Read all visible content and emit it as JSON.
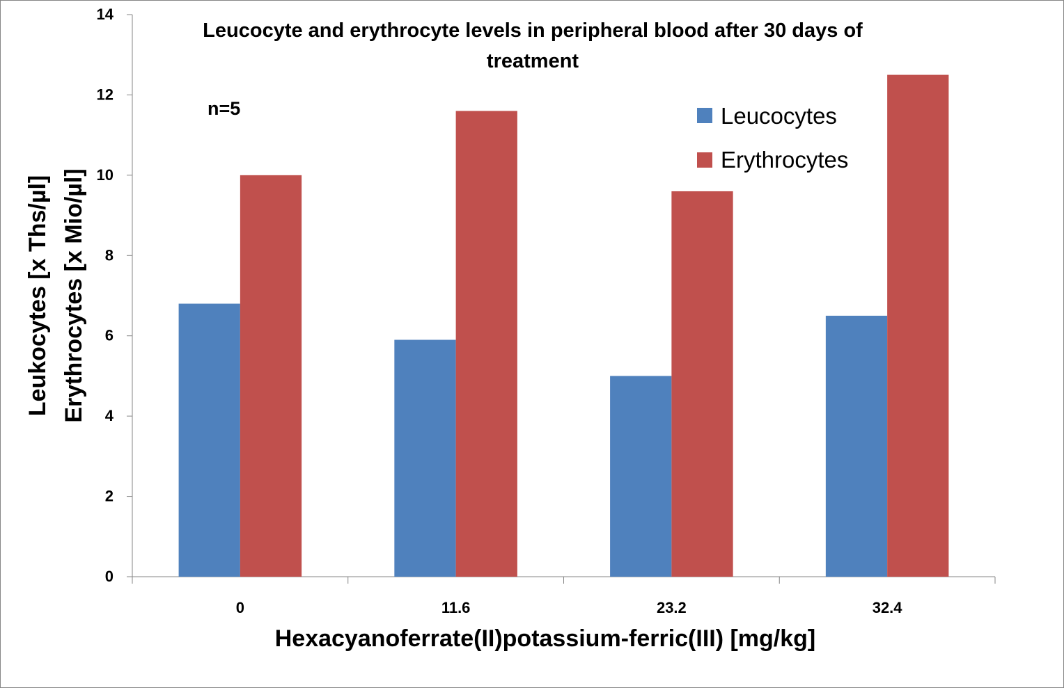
{
  "chart_data": {
    "type": "bar",
    "title_lines": [
      "Leucocyte and erythrocyte levels in peripheral blood after 30 days of",
      "treatment"
    ],
    "xlabel": "Hexacyanoferrate(II)potassium-ferric(III) [mg/kg]",
    "ylabel_lines": [
      "Leukocytes [x Ths/µl]",
      "Erythrocytes [x Mio/µl]"
    ],
    "annotation": "n=5",
    "categories": [
      "0",
      "11.6",
      "23.2",
      "32.4"
    ],
    "series": [
      {
        "name": "Leucocytes",
        "color": "#4F81BD",
        "values": [
          6.8,
          5.9,
          5.0,
          6.5
        ]
      },
      {
        "name": "Erythrocytes",
        "color": "#C0504D",
        "values": [
          10.0,
          11.6,
          9.6,
          12.5
        ]
      }
    ],
    "ylim": [
      0,
      14
    ],
    "yticks": [
      0,
      2,
      4,
      6,
      8,
      10,
      12,
      14
    ],
    "grid": false,
    "legend_position": "top-right"
  }
}
